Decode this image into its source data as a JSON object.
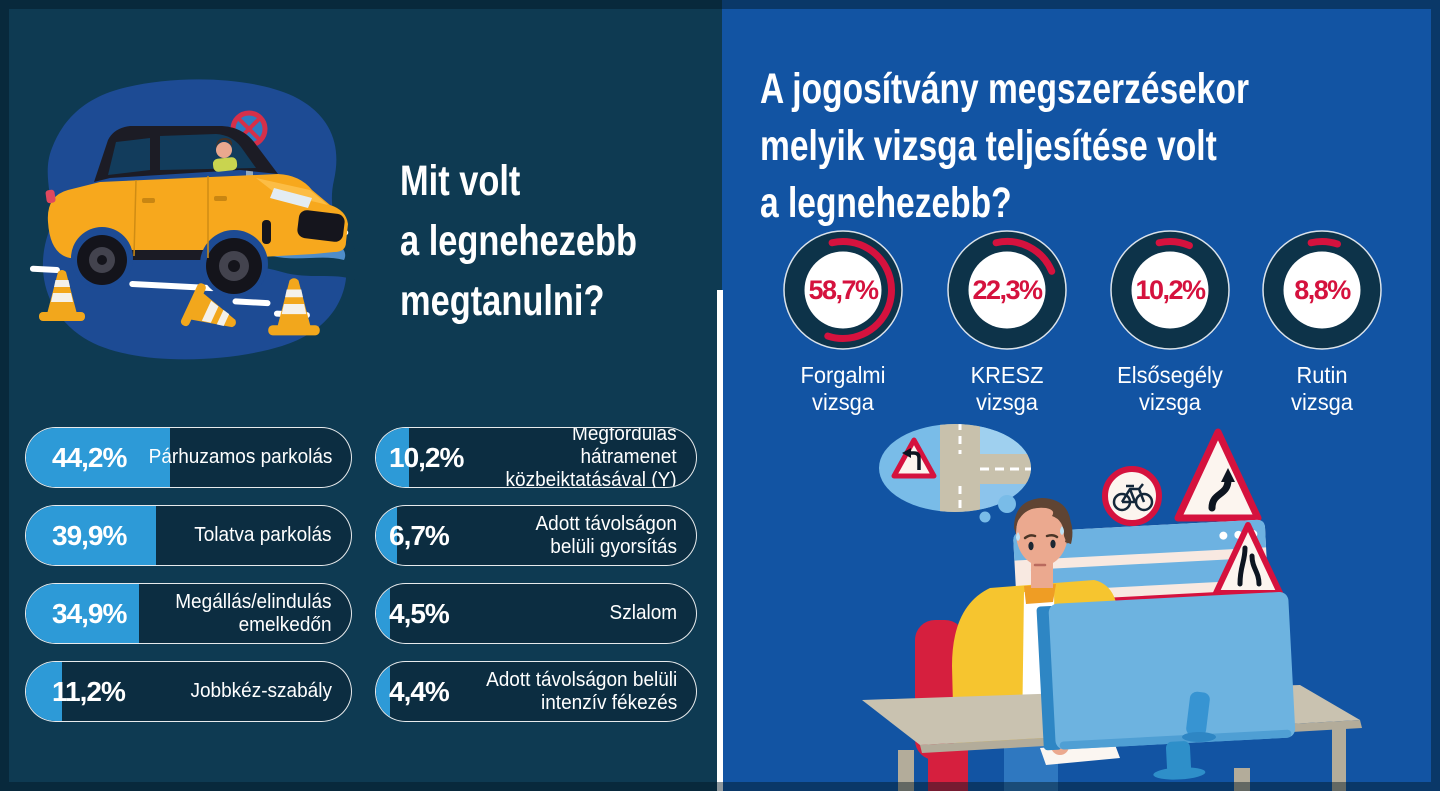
{
  "meta": {
    "type": "infographic",
    "language": "hu"
  },
  "colors": {
    "left_bg": "#0e3a52",
    "pill_bg": "#0c2d41",
    "pill_fill": "#2d9ad7",
    "right_bg": "#1254a3",
    "accent_red": "#d5123e",
    "ring_navy": "#0d3349",
    "white": "#ffffff",
    "car_yellow": "#f7a81d",
    "blob_blue": "#1d4b94",
    "bubble_blue": "#79bce8",
    "jacket_yellow": "#f6c52f",
    "chair_red": "#d61f3e",
    "desk_tan": "#c9c2b0",
    "monitor_blue": "#6db3e0",
    "skin": "#eba98f"
  },
  "left_panel": {
    "title_lines": [
      "Mit volt",
      "a legnehezebb",
      "megtanulni?"
    ],
    "illustration": {
      "name": "car-practice-illustration",
      "elements": [
        "suv-car",
        "driver",
        "traffic-cones",
        "no-stopping-sign",
        "road-markings"
      ]
    },
    "bars": [
      {
        "pct": "44,2%",
        "value": 44.2,
        "label": "Párhuzamos parkolás",
        "label_lines": [
          "Párhuzamos parkolás"
        ]
      },
      {
        "pct": "39,9%",
        "value": 39.9,
        "label": "Tolatva parkolás",
        "label_lines": [
          "Tolatva parkolás"
        ]
      },
      {
        "pct": "34,9%",
        "value": 34.9,
        "label": "Megállás/elindulás emelkedőn",
        "label_lines": [
          "Megállás/elindulás",
          "emelkedőn"
        ]
      },
      {
        "pct": "11,2%",
        "value": 11.2,
        "label": "Jobbkéz-szabály",
        "label_lines": [
          "Jobbkéz-szabály"
        ]
      },
      {
        "pct": "10,2%",
        "value": 10.2,
        "label": "Megfordulás hátramenet közbeiktatásával (Y)",
        "label_lines": [
          "Megfordulás hátramenet",
          "közbeiktatásával (Y)"
        ]
      },
      {
        "pct": "6,7%",
        "value": 6.7,
        "label": "Adott távolságon belüli gyorsítás",
        "label_lines": [
          "Adott távolságon",
          "belüli gyorsítás"
        ]
      },
      {
        "pct": "4,5%",
        "value": 4.5,
        "label": "Szlalom",
        "label_lines": [
          "Szlalom"
        ]
      },
      {
        "pct": "4,4%",
        "value": 4.4,
        "label": "Adott távolságon belüli intenzív fékezés",
        "label_lines": [
          "Adott távolságon belüli",
          "intenzív fékezés"
        ]
      }
    ]
  },
  "right_panel": {
    "title_lines": [
      "A jogosítvány megszerzésekor",
      "melyik vizsga teljesítése volt",
      "a legnehezebb?"
    ],
    "gauges": [
      {
        "pct": "58,7%",
        "value": 58.7,
        "label": "Forgalmi vizsga",
        "label_lines": [
          "Forgalmi",
          "vizsga"
        ]
      },
      {
        "pct": "22,3%",
        "value": 22.3,
        "label": "KRESZ vizsga",
        "label_lines": [
          "KRESZ",
          "vizsga"
        ]
      },
      {
        "pct": "10,2%",
        "value": 10.2,
        "label": "Elsősegély vizsga",
        "label_lines": [
          "Elsősegély",
          "vizsga"
        ]
      },
      {
        "pct": "8,8%",
        "value": 8.8,
        "label": "Rutin vizsga",
        "label_lines": [
          "Rutin",
          "vizsga"
        ]
      }
    ],
    "illustration": {
      "name": "exam-study-illustration",
      "elements": [
        "thought-bubble-intersection",
        "curve-left-warning-sign",
        "no-bicycles-sign",
        "double-bend-warning-sign",
        "road-narrows-warning-sign",
        "exam-webpage",
        "computer-monitor",
        "student",
        "red-chair",
        "desk"
      ]
    }
  },
  "chart_data": [
    {
      "type": "bar",
      "orientation": "horizontal",
      "title": "Mit volt a legnehezebb megtanulni?",
      "categories": [
        "Párhuzamos parkolás",
        "Tolatva parkolás",
        "Megállás/elindulás emelkedőn",
        "Jobbkéz-szabály",
        "Megfordulás hátramenet közbeiktatásával (Y)",
        "Adott távolságon belüli gyorsítás",
        "Szlalom",
        "Adott távolságon belüli intenzív fékezés"
      ],
      "values": [
        44.2,
        39.9,
        34.9,
        11.2,
        10.2,
        6.7,
        4.5,
        4.4
      ],
      "value_labels": [
        "44,2%",
        "39,9%",
        "34,9%",
        "11,2%",
        "10,2%",
        "6,7%",
        "4,5%",
        "4,4%"
      ],
      "unit": "%",
      "xlim": [
        0,
        100
      ],
      "grid": false,
      "legend": false
    },
    {
      "type": "pie",
      "subtype": "donut-gauges",
      "title": "A jogosítvány megszerzésekor melyik vizsga teljesítése volt a legnehezebb?",
      "categories": [
        "Forgalmi vizsga",
        "KRESZ vizsga",
        "Elsősegély vizsga",
        "Rutin vizsga"
      ],
      "values": [
        58.7,
        22.3,
        10.2,
        8.8
      ],
      "value_labels": [
        "58,7%",
        "22,3%",
        "10,2%",
        "8,8%"
      ],
      "unit": "%",
      "grid": false,
      "legend": false
    }
  ]
}
